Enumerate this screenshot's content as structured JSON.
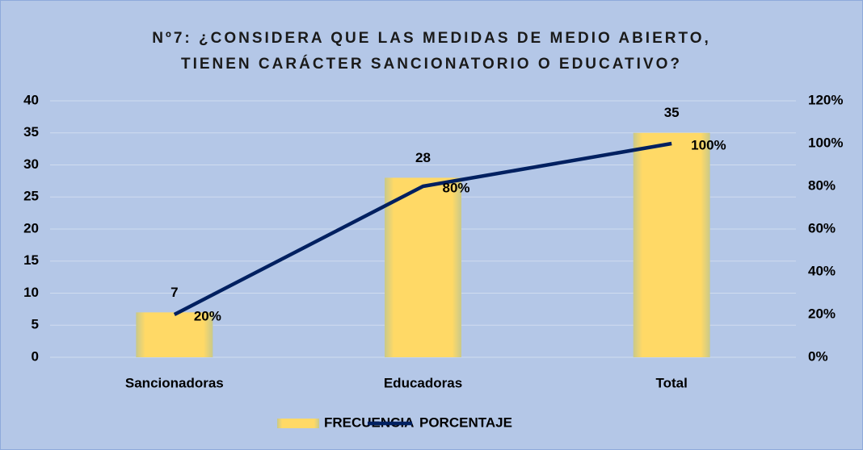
{
  "chart_data": {
    "type": "bar-line",
    "title": [
      "Nº7: ¿CONSIDERA QUE LAS MEDIDAS DE MEDIO ABIERTO,",
      "TIENEN CARÁCTER SANCIONATORIO O EDUCATIVO?"
    ],
    "categories": [
      "Sancionadoras",
      "Educadoras",
      "Total"
    ],
    "series": [
      {
        "name": "FRECUENCIA",
        "color": "#ffd966",
        "values": [
          7,
          28,
          35
        ]
      },
      {
        "name": "PORCENTAJE",
        "color": "#002060",
        "axis": "y2",
        "values": [
          20,
          80,
          100
        ],
        "value_labels": [
          "20%",
          "80%",
          "100%"
        ]
      }
    ],
    "ylim": [
      0,
      40
    ],
    "yticks": [
      0,
      5,
      10,
      15,
      20,
      25,
      30,
      35,
      40
    ],
    "y2lim": [
      0,
      120
    ],
    "y2ticks": [
      {
        "value": 0,
        "label": "0%"
      },
      {
        "value": 20,
        "label": "20%"
      },
      {
        "value": 40,
        "label": "40%"
      },
      {
        "value": 60,
        "label": "60%"
      },
      {
        "value": 80,
        "label": "80%"
      },
      {
        "value": 100,
        "label": "100%"
      },
      {
        "value": 120,
        "label": "120%"
      }
    ],
    "grid": true,
    "legend": "bottom"
  }
}
